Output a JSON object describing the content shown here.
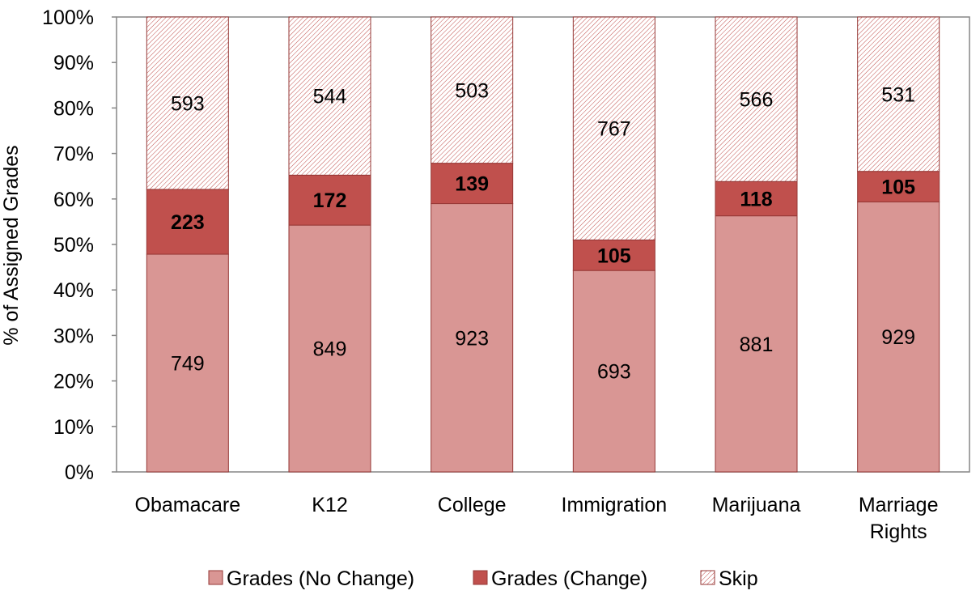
{
  "chart_data": {
    "type": "bar",
    "stacked": "percent",
    "categories": [
      "Obamacare",
      "K12",
      "College",
      "Immigration",
      "Marijuana",
      "Marriage Rights"
    ],
    "series": [
      {
        "name": "Grades (No Change)",
        "values": [
          749,
          849,
          923,
          693,
          881,
          929
        ],
        "color": "#d99694",
        "label_bold": false
      },
      {
        "name": "Grades (Change)",
        "values": [
          223,
          172,
          139,
          105,
          118,
          105
        ],
        "color": "#c0504d",
        "label_bold": true
      },
      {
        "name": "Skip",
        "values": [
          593,
          544,
          503,
          767,
          566,
          531
        ],
        "color": "#ffffff",
        "pattern": "diagonal-hatch",
        "label_bold": false
      }
    ],
    "ylabel": "% of Assigned Grades",
    "xlabel": "",
    "ylim": [
      0,
      100
    ],
    "yticks": [
      "0%",
      "10%",
      "20%",
      "30%",
      "40%",
      "50%",
      "60%",
      "70%",
      "80%",
      "90%",
      "100%"
    ],
    "legend_position": "bottom",
    "grid": false,
    "colors": {
      "bar_stroke": "#953735",
      "hatch": "#c0504d",
      "axis": "#868686"
    }
  }
}
